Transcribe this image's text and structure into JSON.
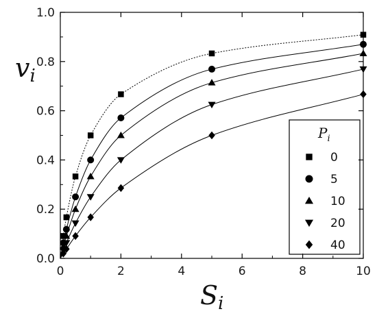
{
  "chart_data": {
    "type": "scatter",
    "title": "",
    "xlabel": "S",
    "xlabel_sub": "i",
    "ylabel": "v",
    "ylabel_sub": "i",
    "xlim": [
      0,
      10
    ],
    "ylim": [
      0,
      1.0
    ],
    "xticks": [
      "0",
      "2",
      "4",
      "6",
      "8",
      "10"
    ],
    "yticks": [
      "0.0",
      "0.2",
      "0.4",
      "0.6",
      "0.8",
      "1.0"
    ],
    "grid": false,
    "legend": {
      "title": "P",
      "title_sub": "i",
      "placement": "bottom-right inside"
    },
    "series": [
      {
        "name": "0",
        "marker": "square",
        "dashed": true,
        "x": [
          0.1,
          0.2,
          0.5,
          1,
          2,
          5,
          10
        ],
        "y": [
          0.091,
          0.167,
          0.333,
          0.5,
          0.667,
          0.833,
          0.909
        ]
      },
      {
        "name": "5",
        "marker": "circle",
        "dashed": false,
        "x": [
          0.1,
          0.2,
          0.5,
          1,
          2,
          5,
          10
        ],
        "y": [
          0.063,
          0.118,
          0.25,
          0.4,
          0.571,
          0.769,
          0.87
        ]
      },
      {
        "name": "10",
        "marker": "triangle-up",
        "dashed": false,
        "x": [
          0.1,
          0.2,
          0.5,
          1,
          2,
          5,
          10
        ],
        "y": [
          0.048,
          0.091,
          0.2,
          0.333,
          0.5,
          0.714,
          0.833
        ]
      },
      {
        "name": "20",
        "marker": "triangle-down",
        "dashed": false,
        "x": [
          0.1,
          0.2,
          0.5,
          1,
          2,
          5,
          10
        ],
        "y": [
          0.032,
          0.063,
          0.143,
          0.25,
          0.4,
          0.625,
          0.769
        ]
      },
      {
        "name": "40",
        "marker": "diamond",
        "dashed": false,
        "x": [
          0.1,
          0.2,
          0.5,
          1,
          2,
          5,
          10
        ],
        "y": [
          0.02,
          0.038,
          0.091,
          0.167,
          0.286,
          0.5,
          0.667
        ]
      }
    ]
  }
}
